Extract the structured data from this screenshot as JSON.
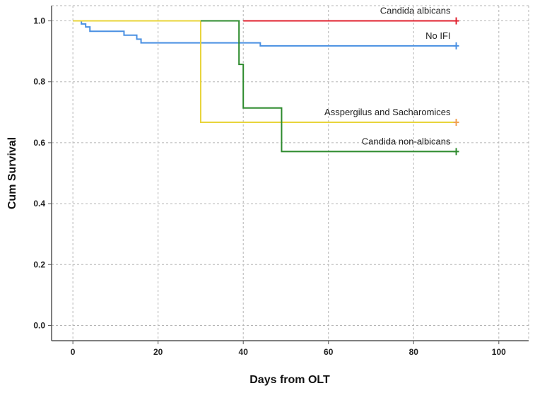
{
  "chart_data": {
    "type": "line",
    "title": "",
    "xlabel": "Days from OLT",
    "ylabel": "Cum Survival",
    "xlim": [
      -5,
      107
    ],
    "ylim": [
      -0.05,
      1.05
    ],
    "xticks": [
      0,
      20,
      40,
      60,
      80,
      100
    ],
    "yticks": [
      0.0,
      0.2,
      0.4,
      0.6,
      0.8,
      1.0
    ],
    "grid": true,
    "step": true,
    "series": [
      {
        "name": "No IFI",
        "color": "#4a90e2",
        "censor_mark": true,
        "x": [
          0,
          2,
          3,
          4,
          12,
          15,
          16,
          44,
          90
        ],
        "y": [
          1.0,
          0.99,
          0.98,
          0.966,
          0.953,
          0.94,
          0.928,
          0.918,
          0.918
        ]
      },
      {
        "name": "Asspergilus and Sacharomices",
        "color": "#e8d43a",
        "mark_color": "#f0a050",
        "censor_mark": true,
        "x": [
          0,
          30,
          90
        ],
        "y": [
          1.0,
          0.667,
          0.667
        ]
      },
      {
        "name": "Candida non-albicans",
        "color": "#2e8b2e",
        "censor_mark": true,
        "x": [
          30,
          39,
          40,
          49,
          90
        ],
        "y": [
          1.0,
          0.857,
          0.714,
          0.571,
          0.571
        ]
      },
      {
        "name": "Candida albicans",
        "color": "#e0202e",
        "censor_mark": true,
        "x": [
          40,
          90
        ],
        "y": [
          1.0,
          1.0
        ]
      }
    ],
    "labels": [
      {
        "series": "Candida albicans",
        "text": "Candida albicans",
        "x": 90,
        "y": 1.0
      },
      {
        "series": "No IFI",
        "text": "No IFI",
        "x": 90,
        "y": 0.918
      },
      {
        "series": "Asspergilus and Sacharomices",
        "text": "Asspergilus and Sacharomices",
        "x": 90,
        "y": 0.667
      },
      {
        "series": "Candida non-albicans",
        "text": "Candida non-albicans",
        "x": 90,
        "y": 0.571
      }
    ]
  }
}
